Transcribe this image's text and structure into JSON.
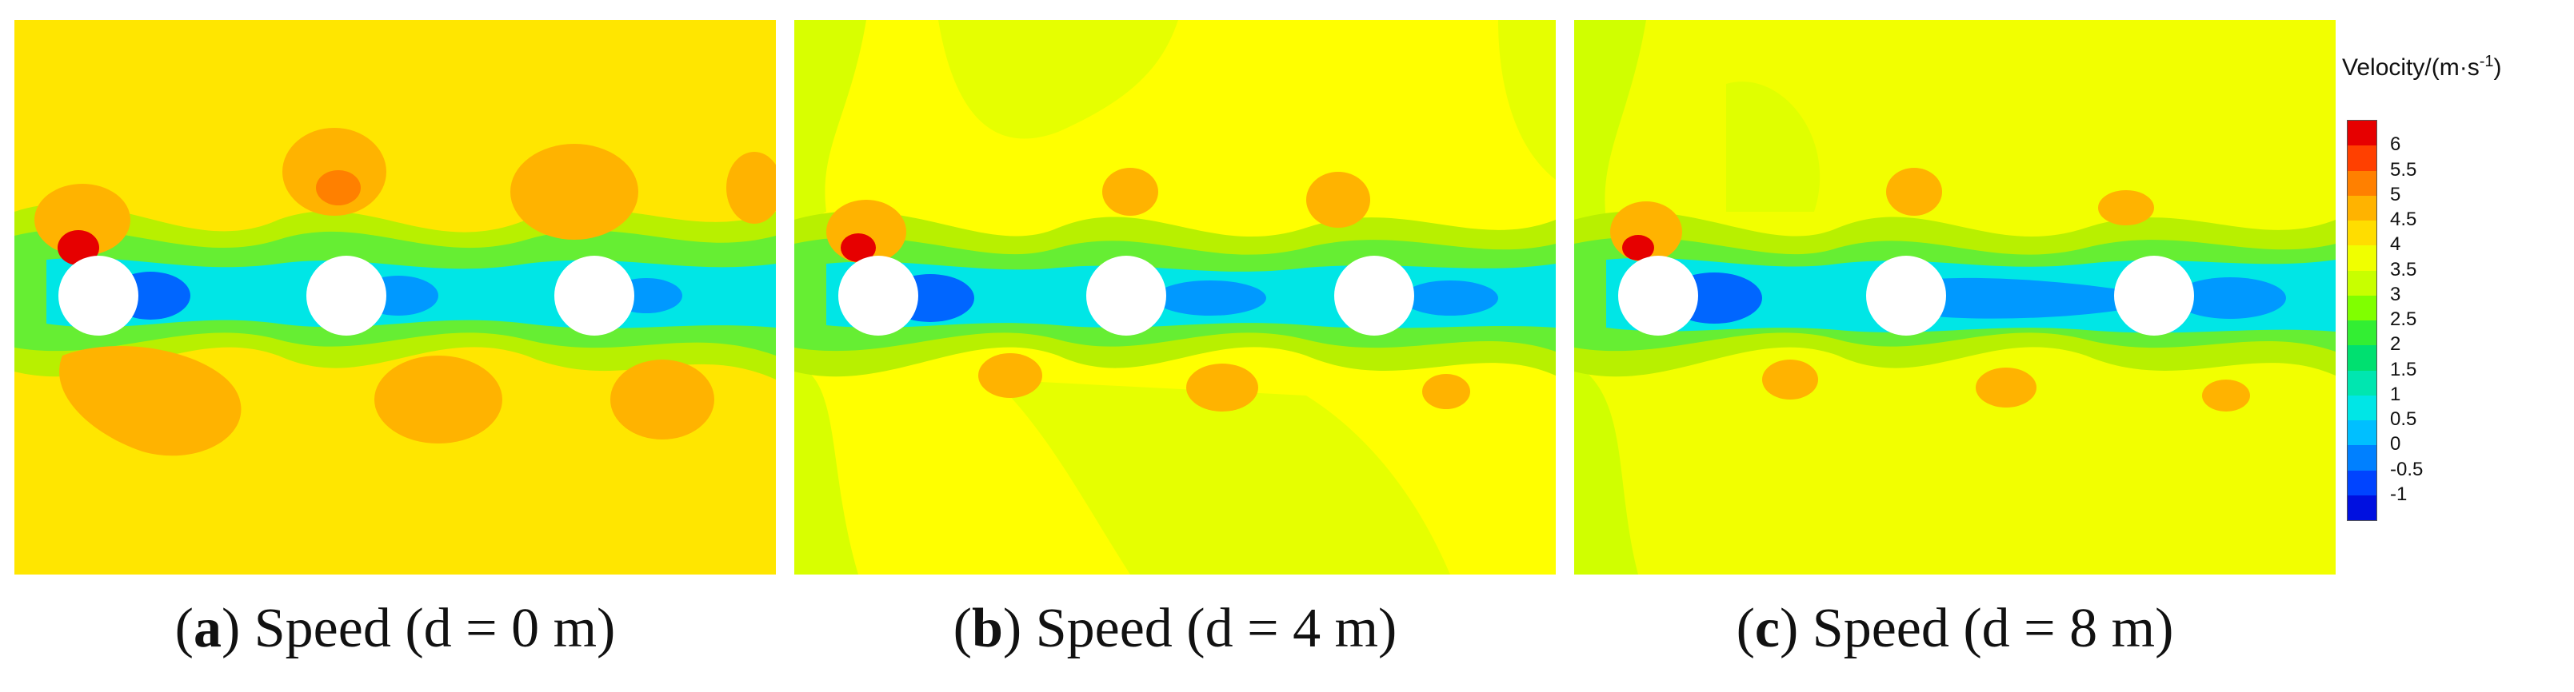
{
  "panels": [
    {
      "id": "a",
      "letter": "a",
      "caption": "Speed (d = 0 m)",
      "background": "#ffe600"
    },
    {
      "id": "b",
      "letter": "b",
      "caption": "Speed (d = 4 m)",
      "background": "#ffff00"
    },
    {
      "id": "c",
      "letter": "c",
      "caption": "Speed (d = 8 m)",
      "background": "#f2ff00"
    }
  ],
  "legend": {
    "title": "Velocity/(m·s",
    "title_exponent": "-1",
    "title_suffix": ")",
    "labels": [
      "6",
      "5.5",
      "5",
      "4.5",
      "4",
      "3.5",
      "3",
      "2.5",
      "2",
      "1.5",
      "1",
      "0.5",
      "0",
      "-0.5",
      "-1"
    ],
    "colors": [
      "#e60000",
      "#ff4000",
      "#ff8000",
      "#ffb300",
      "#ffdd00",
      "#f0ff00",
      "#c8ff00",
      "#80ff00",
      "#33ee33",
      "#00e070",
      "#00e6b0",
      "#00e6e6",
      "#00bfff",
      "#0080ff",
      "#0044ff",
      "#0010e0"
    ]
  },
  "colors": {
    "cylinder": "#ffffff",
    "wake_green": "#66ee33",
    "wake_cyan": "#00e6e6",
    "blob_orange": "#ffb300",
    "blob_dark": "#ff8000",
    "red_spot": "#e60000",
    "blue_spot": "#0066ff"
  }
}
